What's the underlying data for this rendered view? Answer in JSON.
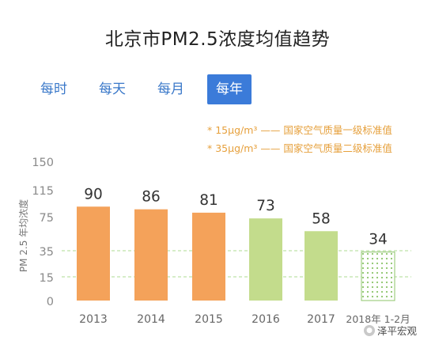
{
  "title": "北京市PM2.5浓度均值趋势",
  "tabs": [
    {
      "label": "每时",
      "active": false
    },
    {
      "label": "每天",
      "active": false
    },
    {
      "label": "每月",
      "active": false
    },
    {
      "label": "每年",
      "active": true
    }
  ],
  "legend": [
    "* 15μg/m³ —— 国家空气质量一级标准值",
    "* 35μg/m³ —— 国家空气质量二级标准值"
  ],
  "watermark": "泽平宏观",
  "colors": {
    "orange": "#f4a25a",
    "green": "#c3dc8c",
    "pattern_dot": "#8cc46a",
    "reference_line": "#bde2a6",
    "tab_active": "#3b7bd9",
    "legend_text": "#e6a03c"
  },
  "chart_data": {
    "type": "bar",
    "title": "北京市PM2.5浓度均值趋势",
    "ylabel": "PM 2.5 年均浓度",
    "xlabel": "",
    "categories": [
      "2013",
      "2014",
      "2015",
      "2016",
      "2017",
      "2018年 1-2月"
    ],
    "values": [
      90,
      86,
      81,
      73,
      58,
      34
    ],
    "bar_styles": [
      "orange",
      "orange",
      "orange",
      "green",
      "green",
      "dotted"
    ],
    "y_ticks": [
      0,
      15,
      35,
      75,
      115,
      150
    ],
    "ylim": [
      0,
      150
    ],
    "reference_lines": [
      15,
      35
    ],
    "grid": false
  }
}
